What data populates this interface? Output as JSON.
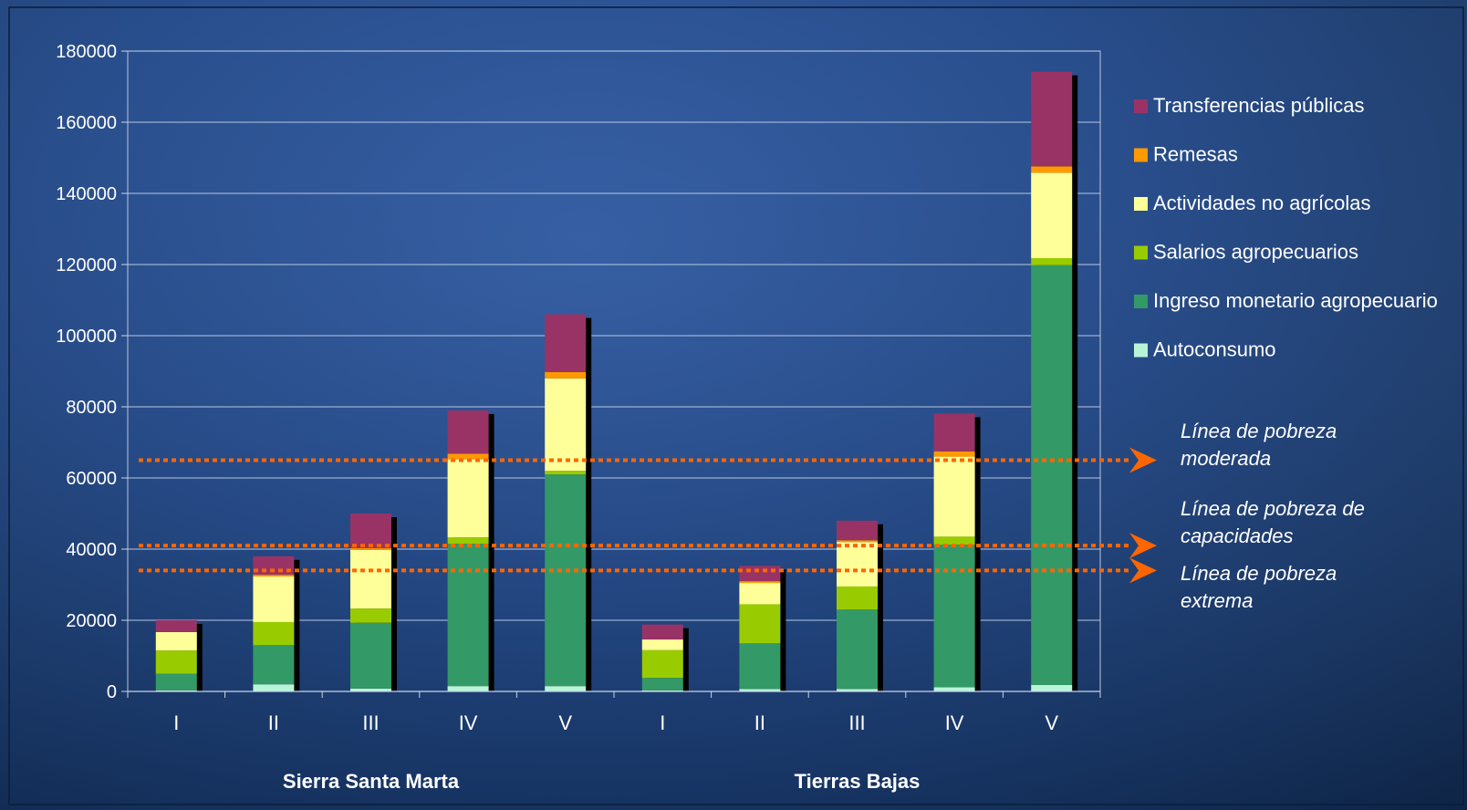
{
  "chart_data": {
    "type": "bar",
    "stacked": true,
    "ylim": [
      0,
      180000
    ],
    "yticks": [
      0,
      20000,
      40000,
      60000,
      80000,
      100000,
      120000,
      140000,
      160000,
      180000
    ],
    "grid": true,
    "legend_position": "right",
    "categories": [
      "I",
      "II",
      "III",
      "IV",
      "V",
      "I",
      "II",
      "III",
      "IV",
      "V"
    ],
    "groups": [
      {
        "label": "Sierra Santa Marta",
        "categories": [
          "I",
          "II",
          "III",
          "IV",
          "V"
        ]
      },
      {
        "label": "Tierras Bajas",
        "categories": [
          "I",
          "II",
          "III",
          "IV",
          "V"
        ]
      }
    ],
    "series": [
      {
        "name": "Autoconsumo",
        "color": "#b8f5d8",
        "values": [
          300,
          2000,
          800,
          1500,
          1500,
          300,
          700,
          700,
          1200,
          1800
        ]
      },
      {
        "name": "Ingreso monetario agropecuario",
        "color": "#339966",
        "values": [
          4700,
          11000,
          18500,
          40000,
          59500,
          3500,
          12800,
          22300,
          40000,
          118000
        ]
      },
      {
        "name": "Salarios agropecuarios",
        "color": "#99cc00",
        "values": [
          6500,
          6500,
          4000,
          1800,
          1000,
          7800,
          11000,
          6500,
          2300,
          2000
        ]
      },
      {
        "name": "Actividades no agrícolas",
        "color": "#ffff99",
        "values": [
          5200,
          12800,
          16500,
          22000,
          26000,
          3000,
          6000,
          12500,
          22500,
          24000
        ]
      },
      {
        "name": "Remesas",
        "color": "#ff9900",
        "values": [
          0,
          500,
          500,
          1500,
          1800,
          0,
          500,
          500,
          1500,
          1800
        ]
      },
      {
        "name": "Transferencias públicas",
        "color": "#993366",
        "values": [
          3300,
          5200,
          9700,
          12200,
          16200,
          4200,
          4300,
          5500,
          10600,
          26600
        ]
      }
    ],
    "reference_lines": [
      {
        "label": "Línea de pobreza moderada",
        "value": 65000,
        "lines": [
          "Línea de pobreza",
          "moderada"
        ]
      },
      {
        "label": "Línea de pobreza de capacidades",
        "value": 41000,
        "lines": [
          "Línea de pobreza de",
          "capacidades"
        ]
      },
      {
        "label": "Línea de pobreza extrema",
        "value": 34000,
        "lines": [
          "Línea de pobreza",
          "extrema"
        ]
      }
    ],
    "colors": {
      "reference_line": "#ff6600",
      "axis_text": "#ffffff",
      "grid": "#c8d4ea"
    }
  }
}
